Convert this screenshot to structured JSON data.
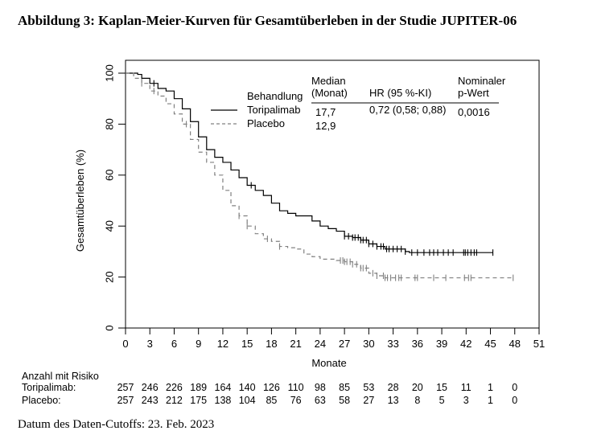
{
  "title": "Abbildung 3: Kaplan-Meier-Kurven für Gesamtüberleben in der Studie JUPITER-06",
  "chart_data": {
    "type": "line",
    "subtype": "kaplan-meier",
    "xlabel": "Monate",
    "ylabel": "Gesamtüberleben  (%)",
    "xlim": [
      0,
      51
    ],
    "ylim": [
      0,
      100
    ],
    "xticks": [
      0,
      3,
      6,
      9,
      12,
      15,
      18,
      21,
      24,
      27,
      30,
      33,
      36,
      39,
      42,
      45,
      48,
      51
    ],
    "yticks": [
      0,
      20,
      40,
      60,
      80,
      100
    ],
    "grid": false,
    "legend": {
      "header_treatment": "Behandlung",
      "header_median": "Median",
      "header_median_unit": "(Monat)",
      "header_hr": "HR (95 %-KI)",
      "header_p1": "Nominaler",
      "header_p2": "p-Wert",
      "rows": [
        {
          "name": "Toripalimab",
          "median": "17,7",
          "hr": "0,72 (0,58; 0,88)",
          "p": "0,0016"
        },
        {
          "name": "Placebo",
          "median": "12,9",
          "hr": "",
          "p": ""
        }
      ],
      "placement": "top-right"
    },
    "series": [
      {
        "name": "Toripalimab",
        "style": "solid",
        "color": "#000000",
        "points": [
          [
            0,
            100
          ],
          [
            1.5,
            99.5
          ],
          [
            2,
            98
          ],
          [
            3,
            96
          ],
          [
            4,
            94
          ],
          [
            5,
            93
          ],
          [
            6,
            90
          ],
          [
            7,
            86
          ],
          [
            8,
            81
          ],
          [
            9,
            75
          ],
          [
            10,
            70
          ],
          [
            11,
            67
          ],
          [
            12,
            65
          ],
          [
            13,
            62
          ],
          [
            14,
            59
          ],
          [
            15,
            56
          ],
          [
            16,
            54
          ],
          [
            17,
            52
          ],
          [
            18,
            49
          ],
          [
            19,
            46
          ],
          [
            20,
            45
          ],
          [
            21,
            44
          ],
          [
            23,
            42
          ],
          [
            24,
            40
          ],
          [
            25,
            39
          ],
          [
            26,
            38
          ],
          [
            27,
            36
          ],
          [
            28,
            35.5
          ],
          [
            29,
            34.5
          ],
          [
            30,
            33
          ],
          [
            31,
            32
          ],
          [
            32,
            31
          ],
          [
            33,
            31
          ],
          [
            34.5,
            30
          ],
          [
            35,
            29.6
          ],
          [
            45.3,
            29.6
          ]
        ],
        "censored": [
          3.5,
          15.5,
          27,
          27.5,
          28,
          28.3,
          28.7,
          29,
          29.3,
          29.7,
          30,
          30.5,
          31,
          31.5,
          31.8,
          32.2,
          32.5,
          33,
          33.5,
          34,
          34.5,
          35.3,
          36,
          36.8,
          37.5,
          38,
          38.5,
          39.2,
          39.8,
          40.4,
          41.7,
          41.9,
          42.2,
          42.6,
          43,
          43.3,
          45.3
        ]
      },
      {
        "name": "Placebo",
        "style": "dashed",
        "color": "#808080",
        "points": [
          [
            0,
            100
          ],
          [
            1,
            98
          ],
          [
            2,
            96
          ],
          [
            3,
            93
          ],
          [
            4,
            91
          ],
          [
            5,
            88
          ],
          [
            6,
            84
          ],
          [
            7,
            80
          ],
          [
            8,
            74
          ],
          [
            9,
            69
          ],
          [
            10,
            65
          ],
          [
            11,
            60
          ],
          [
            12,
            54
          ],
          [
            13,
            48
          ],
          [
            14,
            44
          ],
          [
            15,
            40
          ],
          [
            16,
            37
          ],
          [
            17,
            35
          ],
          [
            18,
            34
          ],
          [
            19,
            32
          ],
          [
            20,
            31.5
          ],
          [
            21,
            31
          ],
          [
            22,
            29
          ],
          [
            23,
            28
          ],
          [
            24,
            27
          ],
          [
            25,
            27
          ],
          [
            26,
            26.5
          ],
          [
            27,
            26
          ],
          [
            28,
            25
          ],
          [
            29,
            23.5
          ],
          [
            30,
            21.5
          ],
          [
            31,
            20.5
          ],
          [
            32,
            19.7
          ],
          [
            47.8,
            19.7
          ]
        ],
        "censored": [
          2,
          3.5,
          7.5,
          14,
          15,
          17.5,
          19,
          26.5,
          26.8,
          27,
          27.3,
          27.7,
          28,
          28.5,
          29,
          29.3,
          29.7,
          30.5,
          31,
          31.8,
          32,
          32.3,
          32.7,
          33.3,
          33.7,
          34,
          35.7,
          36,
          38,
          39.5,
          41.8,
          42.3,
          42.6,
          47.8
        ]
      }
    ],
    "risk_table": {
      "title": "Anzahl mit Risiko",
      "times": [
        0,
        3,
        6,
        9,
        12,
        15,
        18,
        21,
        24,
        27,
        30,
        33,
        36,
        39,
        42,
        45,
        48
      ],
      "rows": [
        {
          "label": "Toripalimab:",
          "values": [
            "257",
            "246",
            "226",
            "189",
            "164",
            "140",
            "126",
            "110",
            "98",
            "85",
            "53",
            "28",
            "20",
            "15",
            "11",
            "1",
            "0"
          ]
        },
        {
          "label": "Placebo:",
          "values": [
            "257",
            "243",
            "212",
            "175",
            "138",
            "104",
            "85",
            "76",
            "63",
            "58",
            "27",
            "13",
            "8",
            "5",
            "3",
            "1",
            "0"
          ]
        }
      ]
    }
  },
  "footer": "Datum des Daten-Cutoffs: 23. Feb. 2023"
}
